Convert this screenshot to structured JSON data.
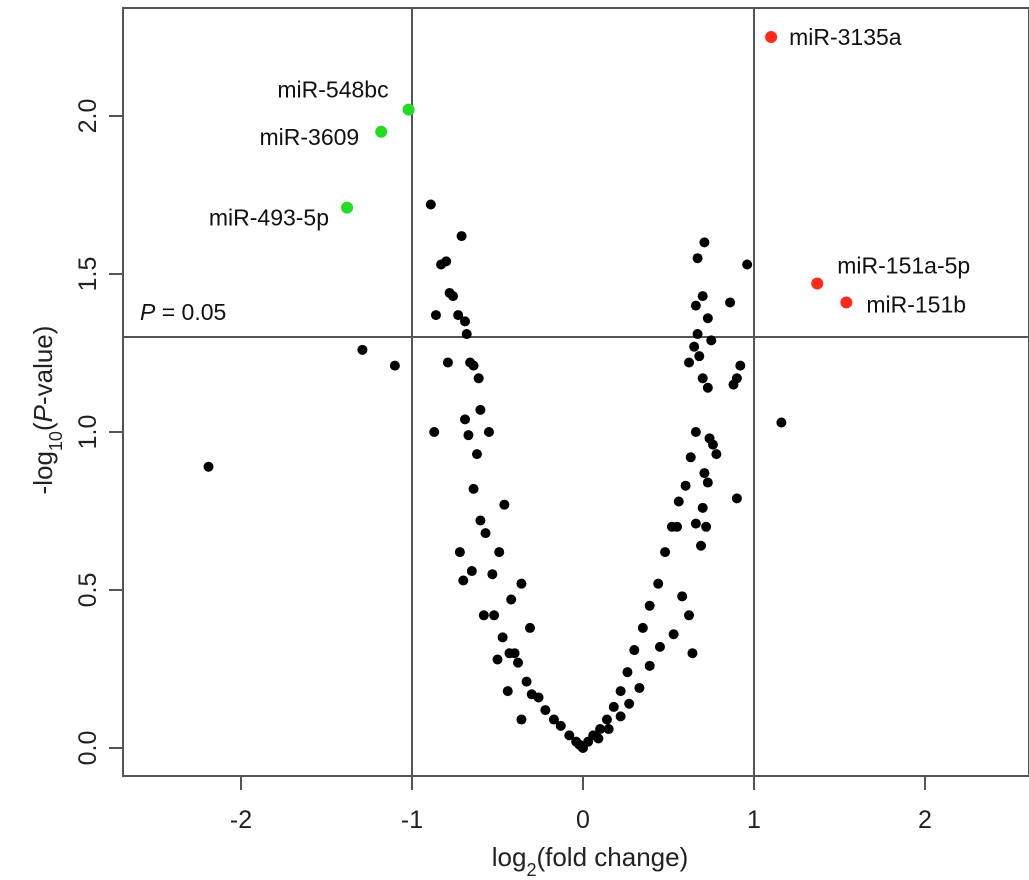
{
  "chart_data": {
    "type": "scatter",
    "xlabel": {
      "pre": "log",
      "sub": "2",
      "post": "(fold change)"
    },
    "ylabel": {
      "pre": "-log",
      "sub": "10",
      "open": "(",
      "italic": "P",
      "post": "-value)"
    },
    "xlim": [
      -2.7,
      2.6
    ],
    "ylim": [
      -0.09,
      2.34
    ],
    "xticks": [
      -2,
      -1,
      0,
      1,
      2
    ],
    "yticks": [
      0.0,
      0.5,
      1.0,
      1.5,
      2.0
    ],
    "ytick_labels": [
      "0.0",
      "0.5",
      "1.0",
      "1.5",
      "2.0"
    ],
    "grid": false,
    "threshold_lines": {
      "x": [
        -1,
        1
      ],
      "y": 1.3
    },
    "threshold_label": {
      "italic": "P",
      "text": " = 0.05"
    },
    "colors": {
      "points": "#000000",
      "up": "#ff2a1a",
      "down": "#22dd22",
      "lines": "#555555"
    },
    "highlighted": [
      {
        "name": "miR-3135a",
        "x": 1.1,
        "y": 2.25,
        "color": "#ff2a1a"
      },
      {
        "name": "miR-151a-5p",
        "x": 1.37,
        "y": 1.47,
        "color": "#ff2a1a"
      },
      {
        "name": "miR-151b",
        "x": 1.54,
        "y": 1.41,
        "color": "#ff2a1a"
      },
      {
        "name": "miR-548bc",
        "x": -1.02,
        "y": 2.02,
        "color": "#22dd22"
      },
      {
        "name": "miR-3609",
        "x": -1.18,
        "y": 1.95,
        "color": "#22dd22"
      },
      {
        "name": "miR-493-5p",
        "x": -1.38,
        "y": 1.71,
        "color": "#22dd22"
      }
    ],
    "points": [
      [
        -2.19,
        0.89
      ],
      [
        -1.29,
        1.26
      ],
      [
        -1.1,
        1.21
      ],
      [
        -0.89,
        1.72
      ],
      [
        -0.87,
        1.0
      ],
      [
        -0.86,
        1.37
      ],
      [
        -0.83,
        1.53
      ],
      [
        -0.8,
        1.54
      ],
      [
        -0.78,
        1.44
      ],
      [
        -0.76,
        1.43
      ],
      [
        -0.73,
        1.37
      ],
      [
        -0.71,
        1.62
      ],
      [
        -0.69,
        1.35
      ],
      [
        -0.68,
        1.31
      ],
      [
        -0.66,
        1.22
      ],
      [
        -0.64,
        1.21
      ],
      [
        -0.61,
        1.17
      ],
      [
        -0.79,
        1.22
      ],
      [
        -0.72,
        0.62
      ],
      [
        -0.7,
        0.53
      ],
      [
        -0.64,
        0.82
      ],
      [
        -0.6,
        0.72
      ],
      [
        -0.65,
        0.56
      ],
      [
        -0.58,
        0.42
      ],
      [
        -0.69,
        1.04
      ],
      [
        -0.67,
        0.99
      ],
      [
        -0.6,
        1.07
      ],
      [
        -0.62,
        0.93
      ],
      [
        -0.55,
        1.0
      ],
      [
        -0.52,
        0.42
      ],
      [
        -0.47,
        0.35
      ],
      [
        -0.5,
        0.28
      ],
      [
        -0.43,
        0.3
      ],
      [
        -0.4,
        0.3
      ],
      [
        -0.38,
        0.27
      ],
      [
        -0.33,
        0.21
      ],
      [
        -0.3,
        0.17
      ],
      [
        -0.26,
        0.16
      ],
      [
        -0.22,
        0.12
      ],
      [
        -0.17,
        0.09
      ],
      [
        -0.13,
        0.07
      ],
      [
        -0.08,
        0.04
      ],
      [
        -0.04,
        0.02
      ],
      [
        -0.02,
        0.01
      ],
      [
        -0.57,
        0.68
      ],
      [
        -0.53,
        0.55
      ],
      [
        -0.49,
        0.62
      ],
      [
        -0.46,
        0.77
      ],
      [
        -0.42,
        0.47
      ],
      [
        -0.36,
        0.52
      ],
      [
        -0.31,
        0.38
      ],
      [
        -0.44,
        0.18
      ],
      [
        -0.36,
        0.09
      ],
      [
        0.0,
        0.0
      ],
      [
        0.03,
        0.02
      ],
      [
        0.06,
        0.04
      ],
      [
        0.1,
        0.06
      ],
      [
        0.14,
        0.09
      ],
      [
        0.18,
        0.13
      ],
      [
        0.22,
        0.18
      ],
      [
        0.26,
        0.24
      ],
      [
        0.3,
        0.31
      ],
      [
        0.35,
        0.38
      ],
      [
        0.39,
        0.45
      ],
      [
        0.44,
        0.52
      ],
      [
        0.48,
        0.62
      ],
      [
        0.52,
        0.7
      ],
      [
        0.56,
        0.78
      ],
      [
        0.6,
        0.83
      ],
      [
        0.63,
        0.92
      ],
      [
        0.66,
        1.0
      ],
      [
        0.7,
        0.76
      ],
      [
        0.62,
        1.22
      ],
      [
        0.65,
        1.27
      ],
      [
        0.67,
        1.31
      ],
      [
        0.68,
        1.24
      ],
      [
        0.66,
        1.4
      ],
      [
        0.7,
        1.43
      ],
      [
        0.67,
        1.55
      ],
      [
        0.71,
        1.6
      ],
      [
        0.73,
        1.36
      ],
      [
        0.75,
        1.29
      ],
      [
        0.7,
        1.17
      ],
      [
        0.73,
        1.14
      ],
      [
        0.74,
        0.98
      ],
      [
        0.76,
        0.96
      ],
      [
        0.78,
        0.93
      ],
      [
        0.71,
        0.87
      ],
      [
        0.73,
        0.84
      ],
      [
        0.69,
        0.64
      ],
      [
        0.72,
        0.7
      ],
      [
        0.66,
        0.71
      ],
      [
        0.86,
        1.41
      ],
      [
        0.9,
        1.17
      ],
      [
        0.92,
        1.21
      ],
      [
        0.88,
        1.15
      ],
      [
        0.9,
        0.79
      ],
      [
        0.96,
        1.53
      ],
      [
        1.16,
        1.03
      ],
      [
        0.55,
        0.7
      ],
      [
        0.62,
        0.42
      ],
      [
        0.58,
        0.48
      ],
      [
        0.64,
        0.3
      ],
      [
        0.53,
        0.36
      ],
      [
        0.45,
        0.32
      ],
      [
        0.39,
        0.26
      ],
      [
        0.33,
        0.19
      ],
      [
        0.27,
        0.14
      ],
      [
        0.22,
        0.1
      ],
      [
        0.15,
        0.06
      ],
      [
        0.09,
        0.03
      ]
    ]
  }
}
